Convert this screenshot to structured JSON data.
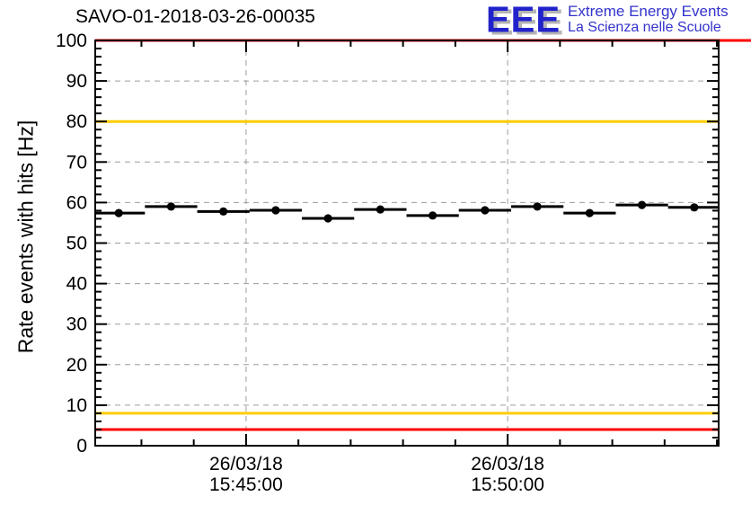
{
  "header": {
    "logo": {
      "acronym": "EEE",
      "line1": "Extreme Energy Events",
      "line2": "La Scienza nelle Scuole",
      "blue": "#2222cc",
      "text_blue": "#3333cc",
      "shadow_gray": "#b4b4b4"
    }
  },
  "chart_data": {
    "type": "scatter",
    "title": "SAVO-01-2018-03-26-00035",
    "ylabel": "Rate events with hits [Hz]",
    "xlabel": "",
    "ylim": [
      0,
      100
    ],
    "y_major_step": 10,
    "y_minor_step": 2,
    "y_tick_labels": [
      "0",
      "10",
      "20",
      "30",
      "40",
      "50",
      "60",
      "70",
      "80",
      "90",
      "100"
    ],
    "grid": true,
    "grid_color": "#9c9c9c",
    "x_range": [
      "15:42:07",
      "15:54:02"
    ],
    "x_minor_step_seconds": 60,
    "x_major_ticks": [
      {
        "time": "15:45:00",
        "label_lines": [
          "26/03/18",
          "15:45:00"
        ]
      },
      {
        "time": "15:50:00",
        "label_lines": [
          "26/03/18",
          "15:50:00"
        ]
      }
    ],
    "marker": "filled-circle",
    "marker_color": "#000000",
    "x_error_seconds": 30,
    "points": [
      {
        "time": "15:42:34",
        "rate_hz": 57.4
      },
      {
        "time": "15:43:34",
        "rate_hz": 59.0
      },
      {
        "time": "15:44:34",
        "rate_hz": 57.8
      },
      {
        "time": "15:45:34",
        "rate_hz": 58.1
      },
      {
        "time": "15:46:34",
        "rate_hz": 56.1
      },
      {
        "time": "15:47:34",
        "rate_hz": 58.3
      },
      {
        "time": "15:48:34",
        "rate_hz": 56.8
      },
      {
        "time": "15:49:34",
        "rate_hz": 58.1
      },
      {
        "time": "15:50:34",
        "rate_hz": 59.0
      },
      {
        "time": "15:51:34",
        "rate_hz": 57.4
      },
      {
        "time": "15:52:34",
        "rate_hz": 59.4
      },
      {
        "time": "15:53:34",
        "rate_hz": 58.8
      }
    ],
    "threshold_lines": [
      {
        "value": 100,
        "color": "#ff0000",
        "full_bleed_right": true
      },
      {
        "value": 80,
        "color": "#ffcc00",
        "full_bleed_right": false
      },
      {
        "value": 8,
        "color": "#ffcc00",
        "full_bleed_right": false
      },
      {
        "value": 4,
        "color": "#ff0000",
        "full_bleed_right": false
      }
    ]
  }
}
